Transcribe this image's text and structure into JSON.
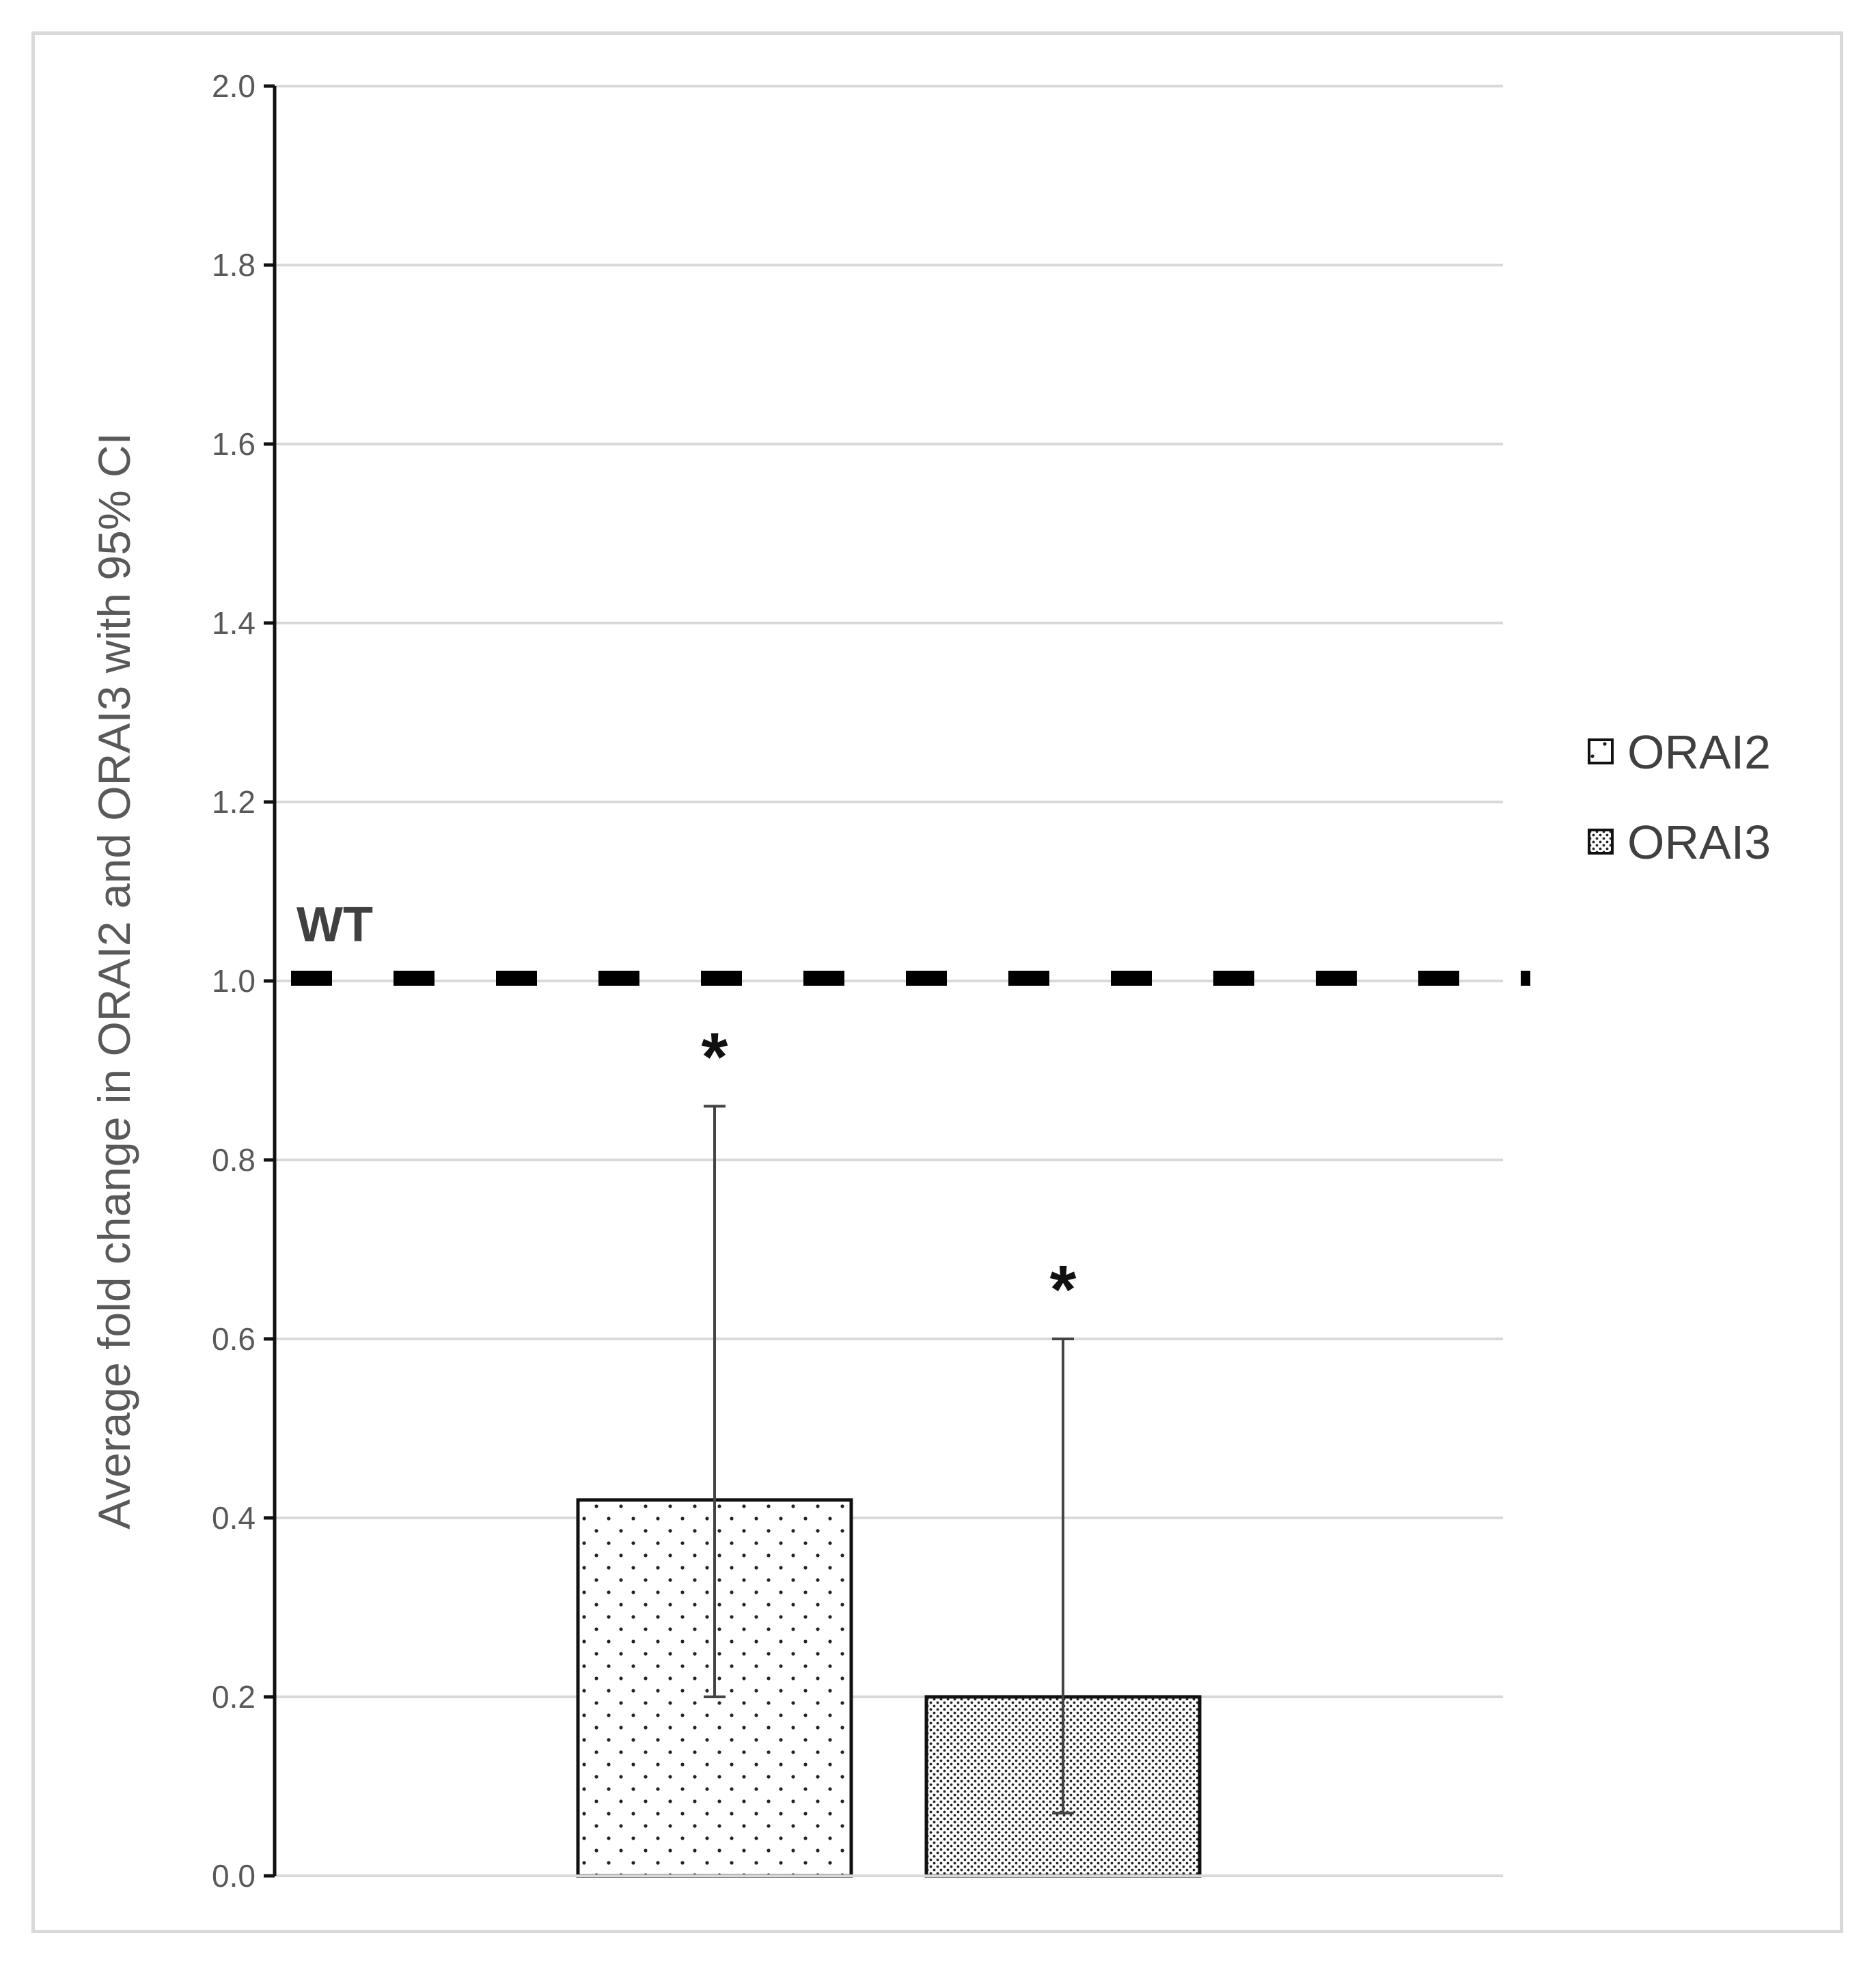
{
  "chart_data": {
    "type": "bar",
    "ylabel": "Average fold change in ORAI2 and ORAI3 with 95% CI",
    "xlabel": "",
    "ylim": [
      0,
      2.0
    ],
    "yticks": [
      "0.0",
      "0.2",
      "0.4",
      "0.6",
      "0.8",
      "1.0",
      "1.2",
      "1.4",
      "1.6",
      "1.8",
      "2.0"
    ],
    "grid": true,
    "legend_position": "right",
    "reference_line": {
      "label": "WT",
      "value": 1.0,
      "style": "dashed"
    },
    "series": [
      {
        "name": "ORAI2",
        "value": 0.42,
        "ci_low": 0.2,
        "ci_high": 0.86,
        "pattern": "sparse-dots",
        "annotation": "*"
      },
      {
        "name": "ORAI3",
        "value": 0.2,
        "ci_low": 0.07,
        "ci_high": 0.6,
        "pattern": "dense-dots",
        "annotation": "*"
      }
    ]
  }
}
